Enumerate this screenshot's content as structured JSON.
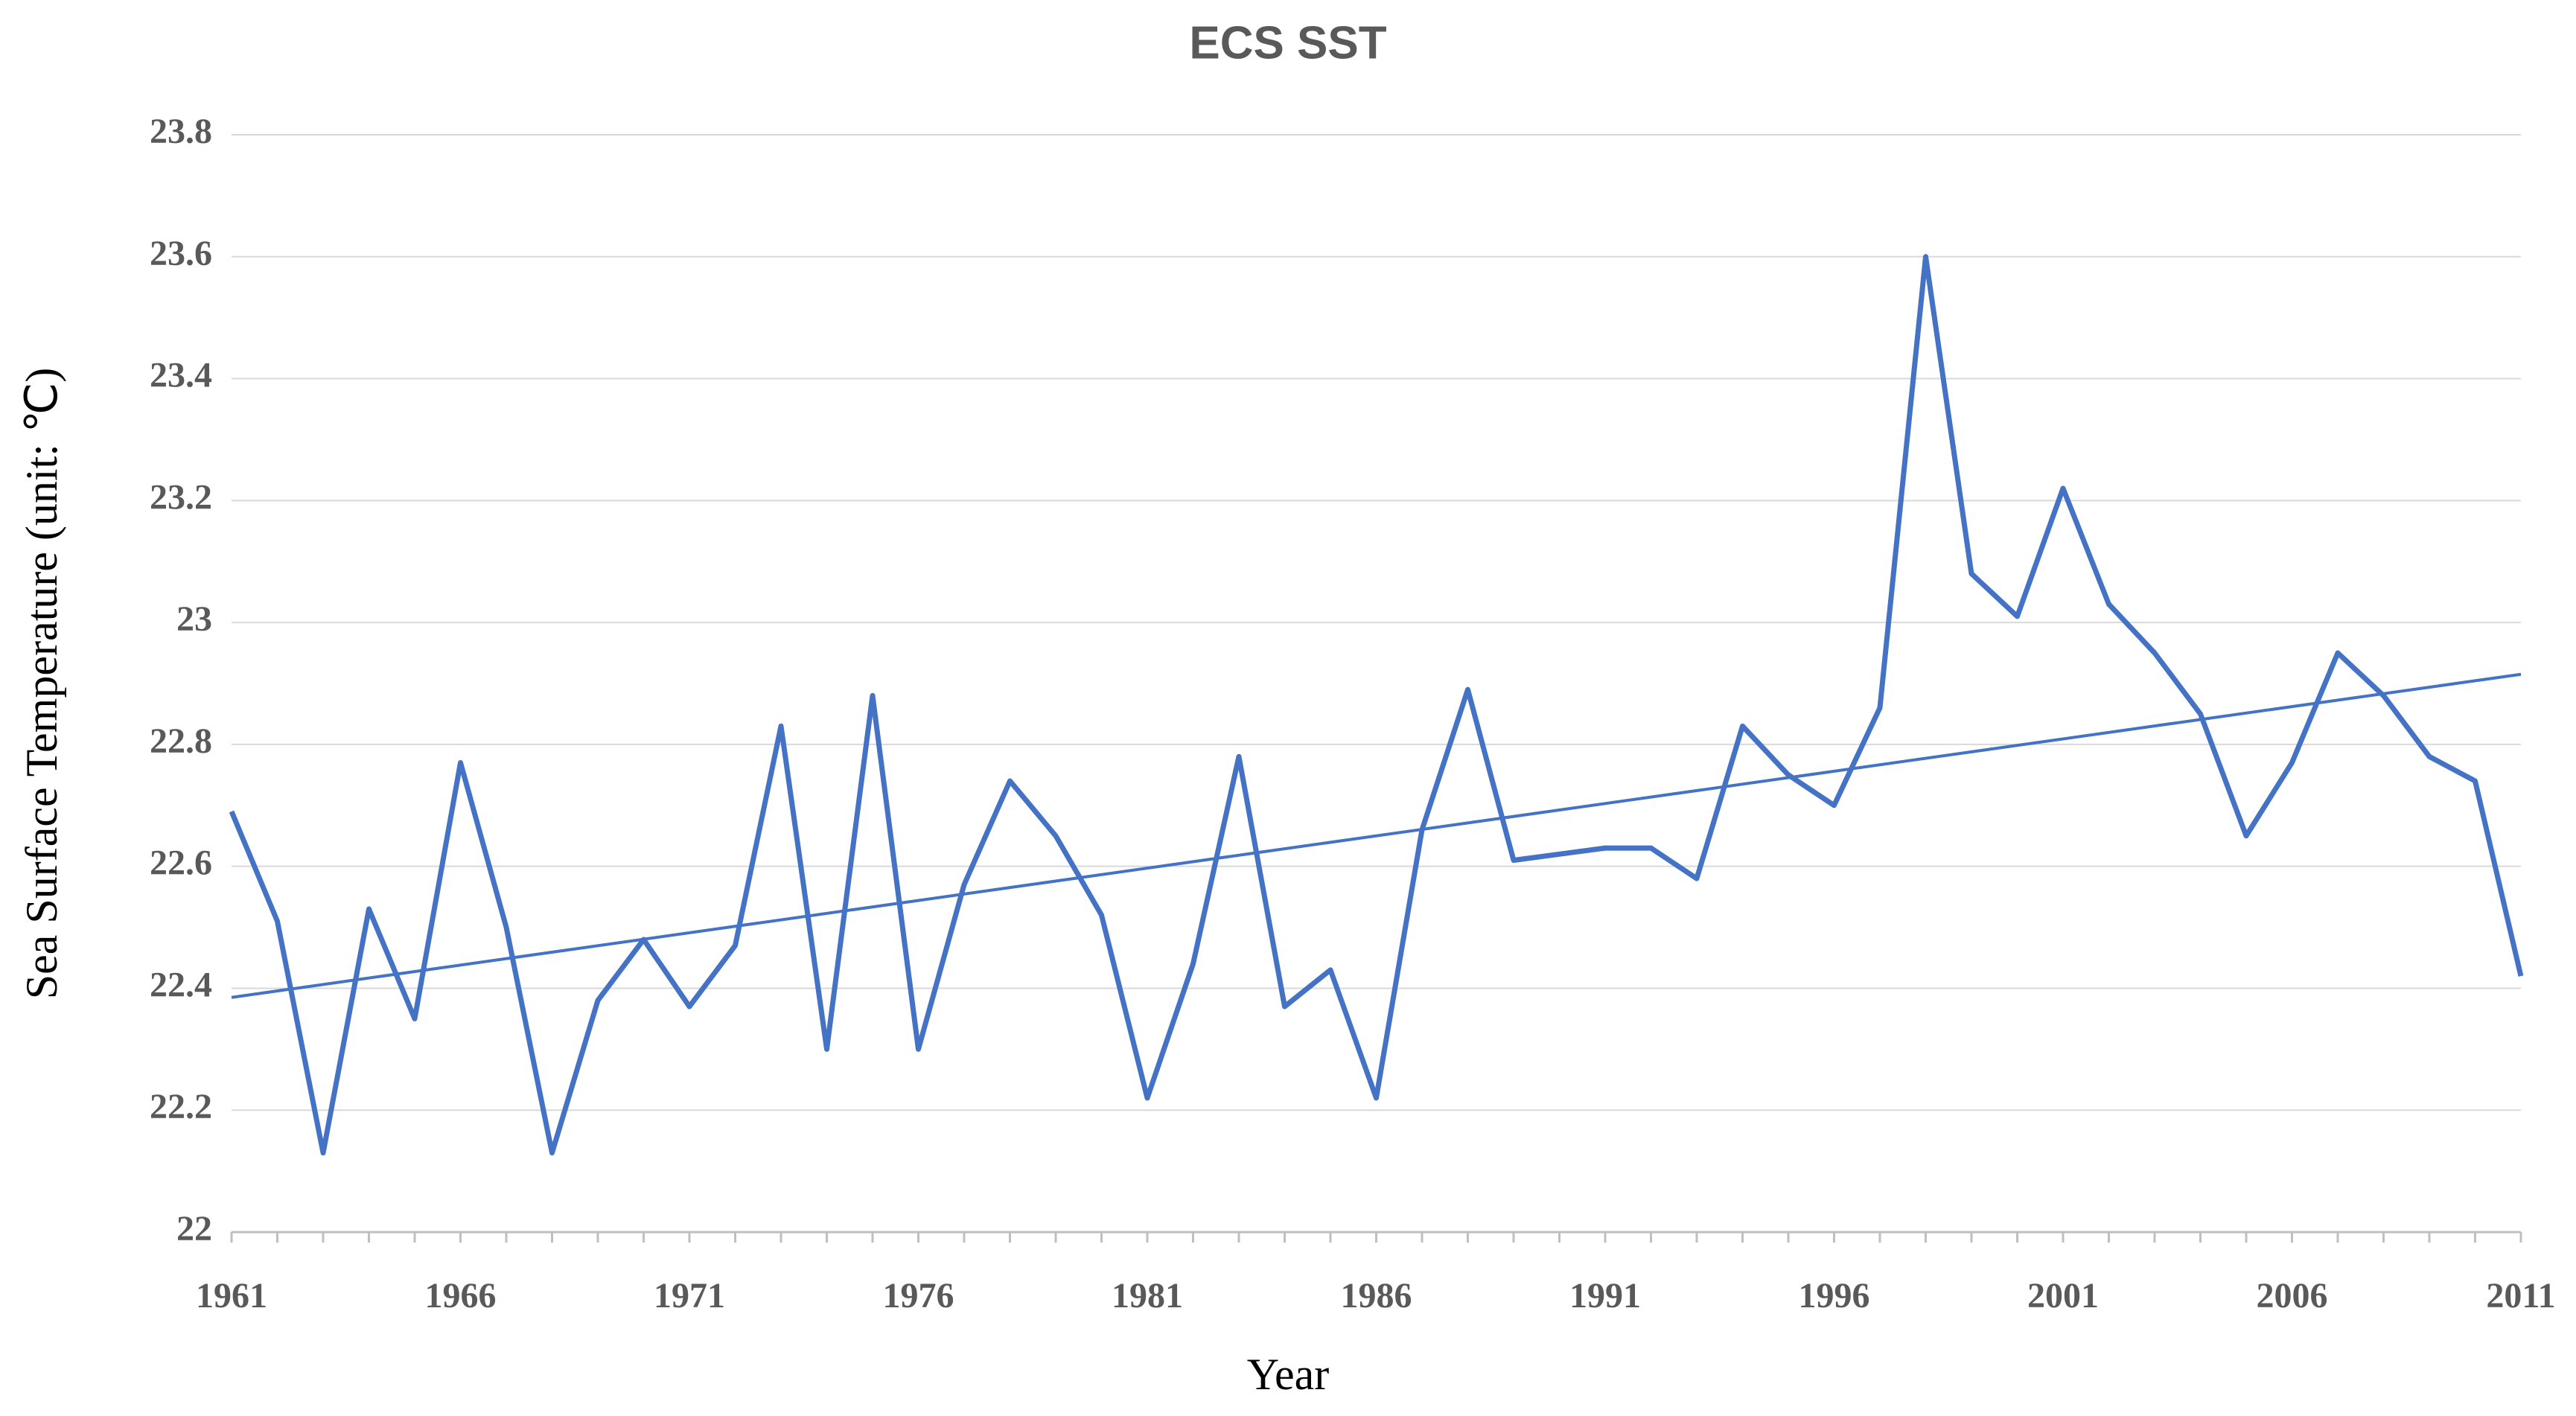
{
  "chart_data": {
    "type": "line",
    "title": "ECS  SST",
    "x_label": "Year",
    "y_label": "Sea Surface Temperature (unit: ℃)",
    "x": [
      1961,
      1962,
      1963,
      1964,
      1965,
      1966,
      1967,
      1968,
      1969,
      1970,
      1971,
      1972,
      1973,
      1974,
      1975,
      1976,
      1977,
      1978,
      1979,
      1980,
      1981,
      1982,
      1983,
      1984,
      1985,
      1986,
      1987,
      1988,
      1989,
      1990,
      1991,
      1992,
      1993,
      1994,
      1995,
      1996,
      1997,
      1998,
      1999,
      2000,
      2001,
      2002,
      2003,
      2004,
      2005,
      2006,
      2007,
      2008,
      2009,
      2010,
      2011
    ],
    "series": [
      {
        "color": "#4472c4",
        "values": [
          22.69,
          22.51,
          22.13,
          22.53,
          22.35,
          22.77,
          22.5,
          22.13,
          22.38,
          22.48,
          22.37,
          22.47,
          22.83,
          22.3,
          22.88,
          22.3,
          22.57,
          22.74,
          22.65,
          22.52,
          22.22,
          22.44,
          22.78,
          22.37,
          22.43,
          22.22,
          22.66,
          22.89,
          22.61,
          22.62,
          22.63,
          22.63,
          22.58,
          22.83,
          22.75,
          22.7,
          22.86,
          23.6,
          23.08,
          23.01,
          23.22,
          23.03,
          22.95,
          22.85,
          22.65,
          22.77,
          22.95,
          22.88,
          22.78,
          22.74,
          22.42
        ]
      }
    ],
    "trendline": {
      "color": "#4472c4",
      "x": [
        1961,
        2011
      ],
      "values": [
        22.385,
        22.915
      ]
    },
    "xlim": [
      1961,
      2011
    ],
    "xticks": [
      1961,
      1966,
      1971,
      1976,
      1981,
      1986,
      1991,
      1996,
      2001,
      2006,
      2011
    ],
    "ylim": [
      22,
      23.8
    ],
    "yticks": [
      22,
      22.2,
      22.4,
      22.6,
      22.8,
      23,
      23.2,
      23.4,
      23.6,
      23.8
    ],
    "grid": true
  }
}
